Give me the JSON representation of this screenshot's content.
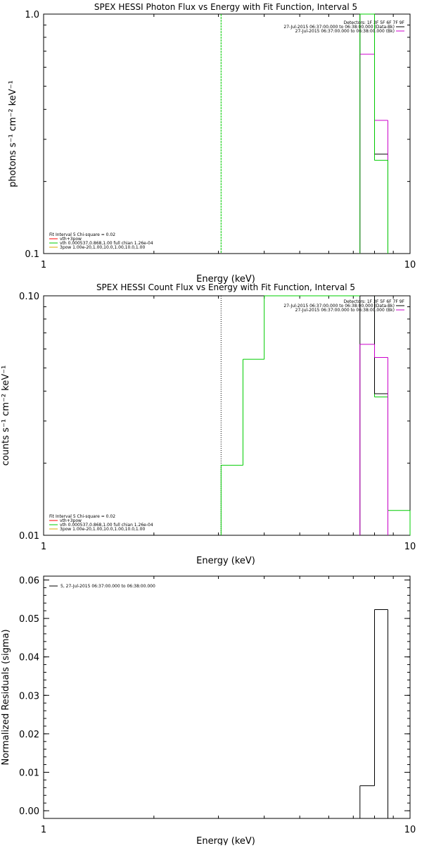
{
  "chart_data": [
    {
      "type": "line",
      "title": "SPEX HESSI Photon Flux vs Energy with Fit Function, Interval 5",
      "xlabel": "Energy (keV)",
      "ylabel": "photons s⁻¹ cm⁻² keV⁻¹",
      "xscale": "log",
      "yscale": "log",
      "xlim": [
        1,
        10
      ],
      "ylim": [
        0.1,
        1.0
      ],
      "x_ticks": [
        {
          "value": 1,
          "label": "1"
        },
        {
          "value": 10,
          "label": "10"
        }
      ],
      "y_ticks": [
        {
          "value": 0.1,
          "label": "0.1"
        },
        {
          "value": 1.0,
          "label": "1.0"
        }
      ],
      "legend_topright": {
        "placement": "top-right",
        "entries": [
          {
            "text": "Detectors: 1F 3F 5F 6F 7F 9F",
            "color": ""
          },
          {
            "text": "27-Jul-2015 06:37:00.000 to 06:38:00.000 (Data-Bk)",
            "color": "#000000"
          },
          {
            "text": "27-Jul-2015 06:37:00.000 to 06:38:00.000 (Bk)",
            "color": "#cc00cc"
          }
        ]
      },
      "legend_bottomleft": {
        "placement": "bottom-left",
        "entries": [
          {
            "text": "Fit Interval 5   Chi-square = 0.02",
            "color": ""
          },
          {
            "text": "vth+3pow",
            "color": "#ff0000"
          },
          {
            "text": "vth 0.000537,0.868,1.00  full chian 1.26e-04",
            "color": "#00cc00"
          },
          {
            "text": "3pow 1.00e-20,1.00,10.0,1.00,10.0,1.00",
            "color": "#ddaa00"
          }
        ]
      },
      "vline": {
        "x": 3.05,
        "color": "#00cc00",
        "style": "dashed"
      },
      "series": [
        {
          "color": "#000000",
          "bins": [
            {
              "x0": 7.3,
              "x1": 8.0,
              "y": 1.0
            },
            {
              "x0": 8.0,
              "x1": 8.7,
              "y": 0.26
            }
          ]
        },
        {
          "color": "#cc00cc",
          "bins": [
            {
              "x0": 7.3,
              "x1": 8.0,
              "y": 0.68
            },
            {
              "x0": 8.0,
              "x1": 8.7,
              "y": 0.36
            }
          ]
        },
        {
          "color": "#00cc00",
          "bins": [
            {
              "x0": 7.3,
              "x1": 8.0,
              "y": 1.0
            },
            {
              "x0": 8.0,
              "x1": 8.7,
              "y": 0.245
            }
          ]
        }
      ]
    },
    {
      "type": "line",
      "title": "SPEX HESSI Count Flux vs Energy with Fit Function, Interval 5",
      "xlabel": "Energy (keV)",
      "ylabel": "counts s⁻¹ cm⁻² keV⁻¹",
      "xscale": "log",
      "yscale": "log",
      "xlim": [
        1,
        10
      ],
      "ylim": [
        0.01,
        0.1
      ],
      "x_ticks": [
        {
          "value": 1,
          "label": "1"
        },
        {
          "value": 10,
          "label": "10"
        }
      ],
      "y_ticks": [
        {
          "value": 0.01,
          "label": "0.01"
        },
        {
          "value": 0.1,
          "label": "0.10"
        }
      ],
      "legend_topright": {
        "placement": "top-right",
        "entries": [
          {
            "text": "Detectors: 1F 3F 5F 6F 7F 9F",
            "color": ""
          },
          {
            "text": "27-Jul-2015 06:37:00.000 to 06:38:00.000 (Data-Bk)",
            "color": "#000000"
          },
          {
            "text": "27-Jul-2015 06:37:00.000 to 06:38:00.000 (Bk)",
            "color": "#cc00cc"
          }
        ]
      },
      "legend_bottomleft": {
        "placement": "bottom-left",
        "entries": [
          {
            "text": "Fit Interval 5   Chi-square = 0.02",
            "color": ""
          },
          {
            "text": "vth+3pow",
            "color": "#ff0000"
          },
          {
            "text": "vth 0.000537,0.868,1.00  full chian 1.26e-04",
            "color": "#00cc00"
          },
          {
            "text": "3pow 1.00e-20,1.00,10.0,1.00,10.0,1.00",
            "color": "#ddaa00"
          }
        ]
      },
      "vline": {
        "x": 3.05,
        "color": "#000000",
        "style": "dotted"
      },
      "series": [
        {
          "color": "#00cc00",
          "bins": [
            {
              "x0": 3.05,
              "x1": 3.5,
              "y": 0.0196
            },
            {
              "x0": 3.5,
              "x1": 4.0,
              "y": 0.0543
            },
            {
              "x0": 4.0,
              "x1": 7.3,
              "y": 0.1
            },
            {
              "x0": 7.3,
              "x1": 8.0,
              "y": 0.1
            },
            {
              "x0": 8.0,
              "x1": 8.7,
              "y": 0.0378
            },
            {
              "x0": 8.7,
              "x1": 10.0,
              "y": 0.0127
            }
          ]
        },
        {
          "color": "#000000",
          "bins": [
            {
              "x0": 7.3,
              "x1": 8.0,
              "y": 0.1
            },
            {
              "x0": 8.0,
              "x1": 8.7,
              "y": 0.039
            }
          ]
        },
        {
          "color": "#cc00cc",
          "bins": [
            {
              "x0": 7.3,
              "x1": 8.0,
              "y": 0.0627
            },
            {
              "x0": 8.0,
              "x1": 8.7,
              "y": 0.0553
            }
          ]
        }
      ]
    },
    {
      "type": "bar",
      "title": "",
      "xlabel": "Energy (keV)",
      "ylabel": "Normalized Residuals (sigma)",
      "xscale": "log",
      "yscale": "linear",
      "xlim": [
        1,
        10
      ],
      "ylim": [
        -0.002,
        0.061
      ],
      "x_ticks": [
        {
          "value": 1,
          "label": "1"
        },
        {
          "value": 10,
          "label": "10"
        }
      ],
      "y_ticks": [
        {
          "value": 0.0,
          "label": "0.00"
        },
        {
          "value": 0.01,
          "label": "0.01"
        },
        {
          "value": 0.02,
          "label": "0.02"
        },
        {
          "value": 0.03,
          "label": "0.03"
        },
        {
          "value": 0.04,
          "label": "0.04"
        },
        {
          "value": 0.05,
          "label": "0.05"
        },
        {
          "value": 0.06,
          "label": "0.06"
        }
      ],
      "legend_topleft": {
        "placement": "top-left",
        "entries": [
          {
            "text": "5, 27-Jul-2015 06:37:00.000 to 06:38:00.000",
            "color": "#000000"
          }
        ]
      },
      "series": [
        {
          "color": "#000000",
          "bins": [
            {
              "x0": 7.3,
              "x1": 8.0,
              "y": 0.0065
            },
            {
              "x0": 8.0,
              "x1": 8.7,
              "y": 0.0523
            }
          ]
        }
      ]
    }
  ]
}
